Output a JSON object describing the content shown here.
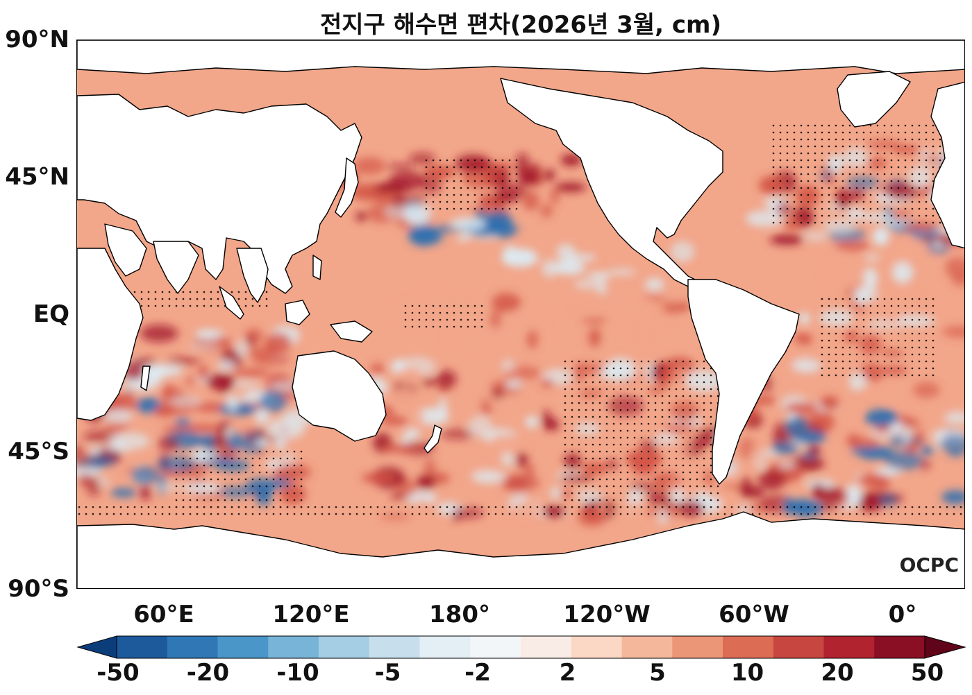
{
  "title": "전지구 해수면 편차(2026년 3월, cm)",
  "axes": {
    "lat_ticks": [
      "90°N",
      "45°N",
      "EQ",
      "45°S",
      "90°S"
    ],
    "lon_ticks": [
      "60°E",
      "120°E",
      "180°",
      "120°W",
      "60°W",
      "0°"
    ]
  },
  "logo": "OCPC",
  "colorbar": {
    "labels": [
      "-50",
      "-20",
      "-10",
      "-5",
      "-2",
      "2",
      "5",
      "10",
      "20",
      "50"
    ],
    "colors": [
      "#0b3d7a",
      "#1c5a9c",
      "#2f78b5",
      "#4a96c8",
      "#78b4d8",
      "#a5cde3",
      "#c7dfec",
      "#e3eef5",
      "#f3f6f8",
      "#f9ebe5",
      "#fbd7c6",
      "#f5b79b",
      "#eb9676",
      "#dd6c55",
      "#c84640",
      "#b0232f",
      "#8a0e24",
      "#5f0419"
    ]
  },
  "colors": {
    "ocean_base": "#f2a68a",
    "ocean_warm": "#d35446",
    "ocean_hot": "#a0162a",
    "ocean_cool": "#dcebf3",
    "ocean_cold": "#2c6fb0",
    "land": "#ffffff",
    "coastline": "#000000"
  }
}
